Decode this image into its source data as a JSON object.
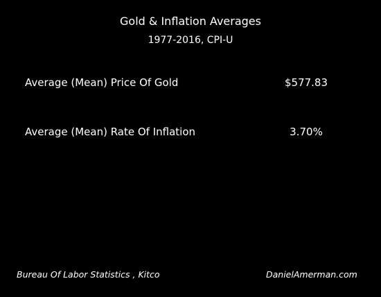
{
  "header": {
    "title": "Gold & Inflation Averages",
    "subtitle": "1977-2016, CPI-U"
  },
  "rows": [
    {
      "label": "Average (Mean) Price Of Gold",
      "value": "$577.83"
    },
    {
      "label": "Average (Mean) Rate Of Inflation",
      "value": "3.70%"
    }
  ],
  "footer": {
    "source": "Bureau Of Labor Statistics , Kitco",
    "credit": "DanielAmerman.com"
  }
}
